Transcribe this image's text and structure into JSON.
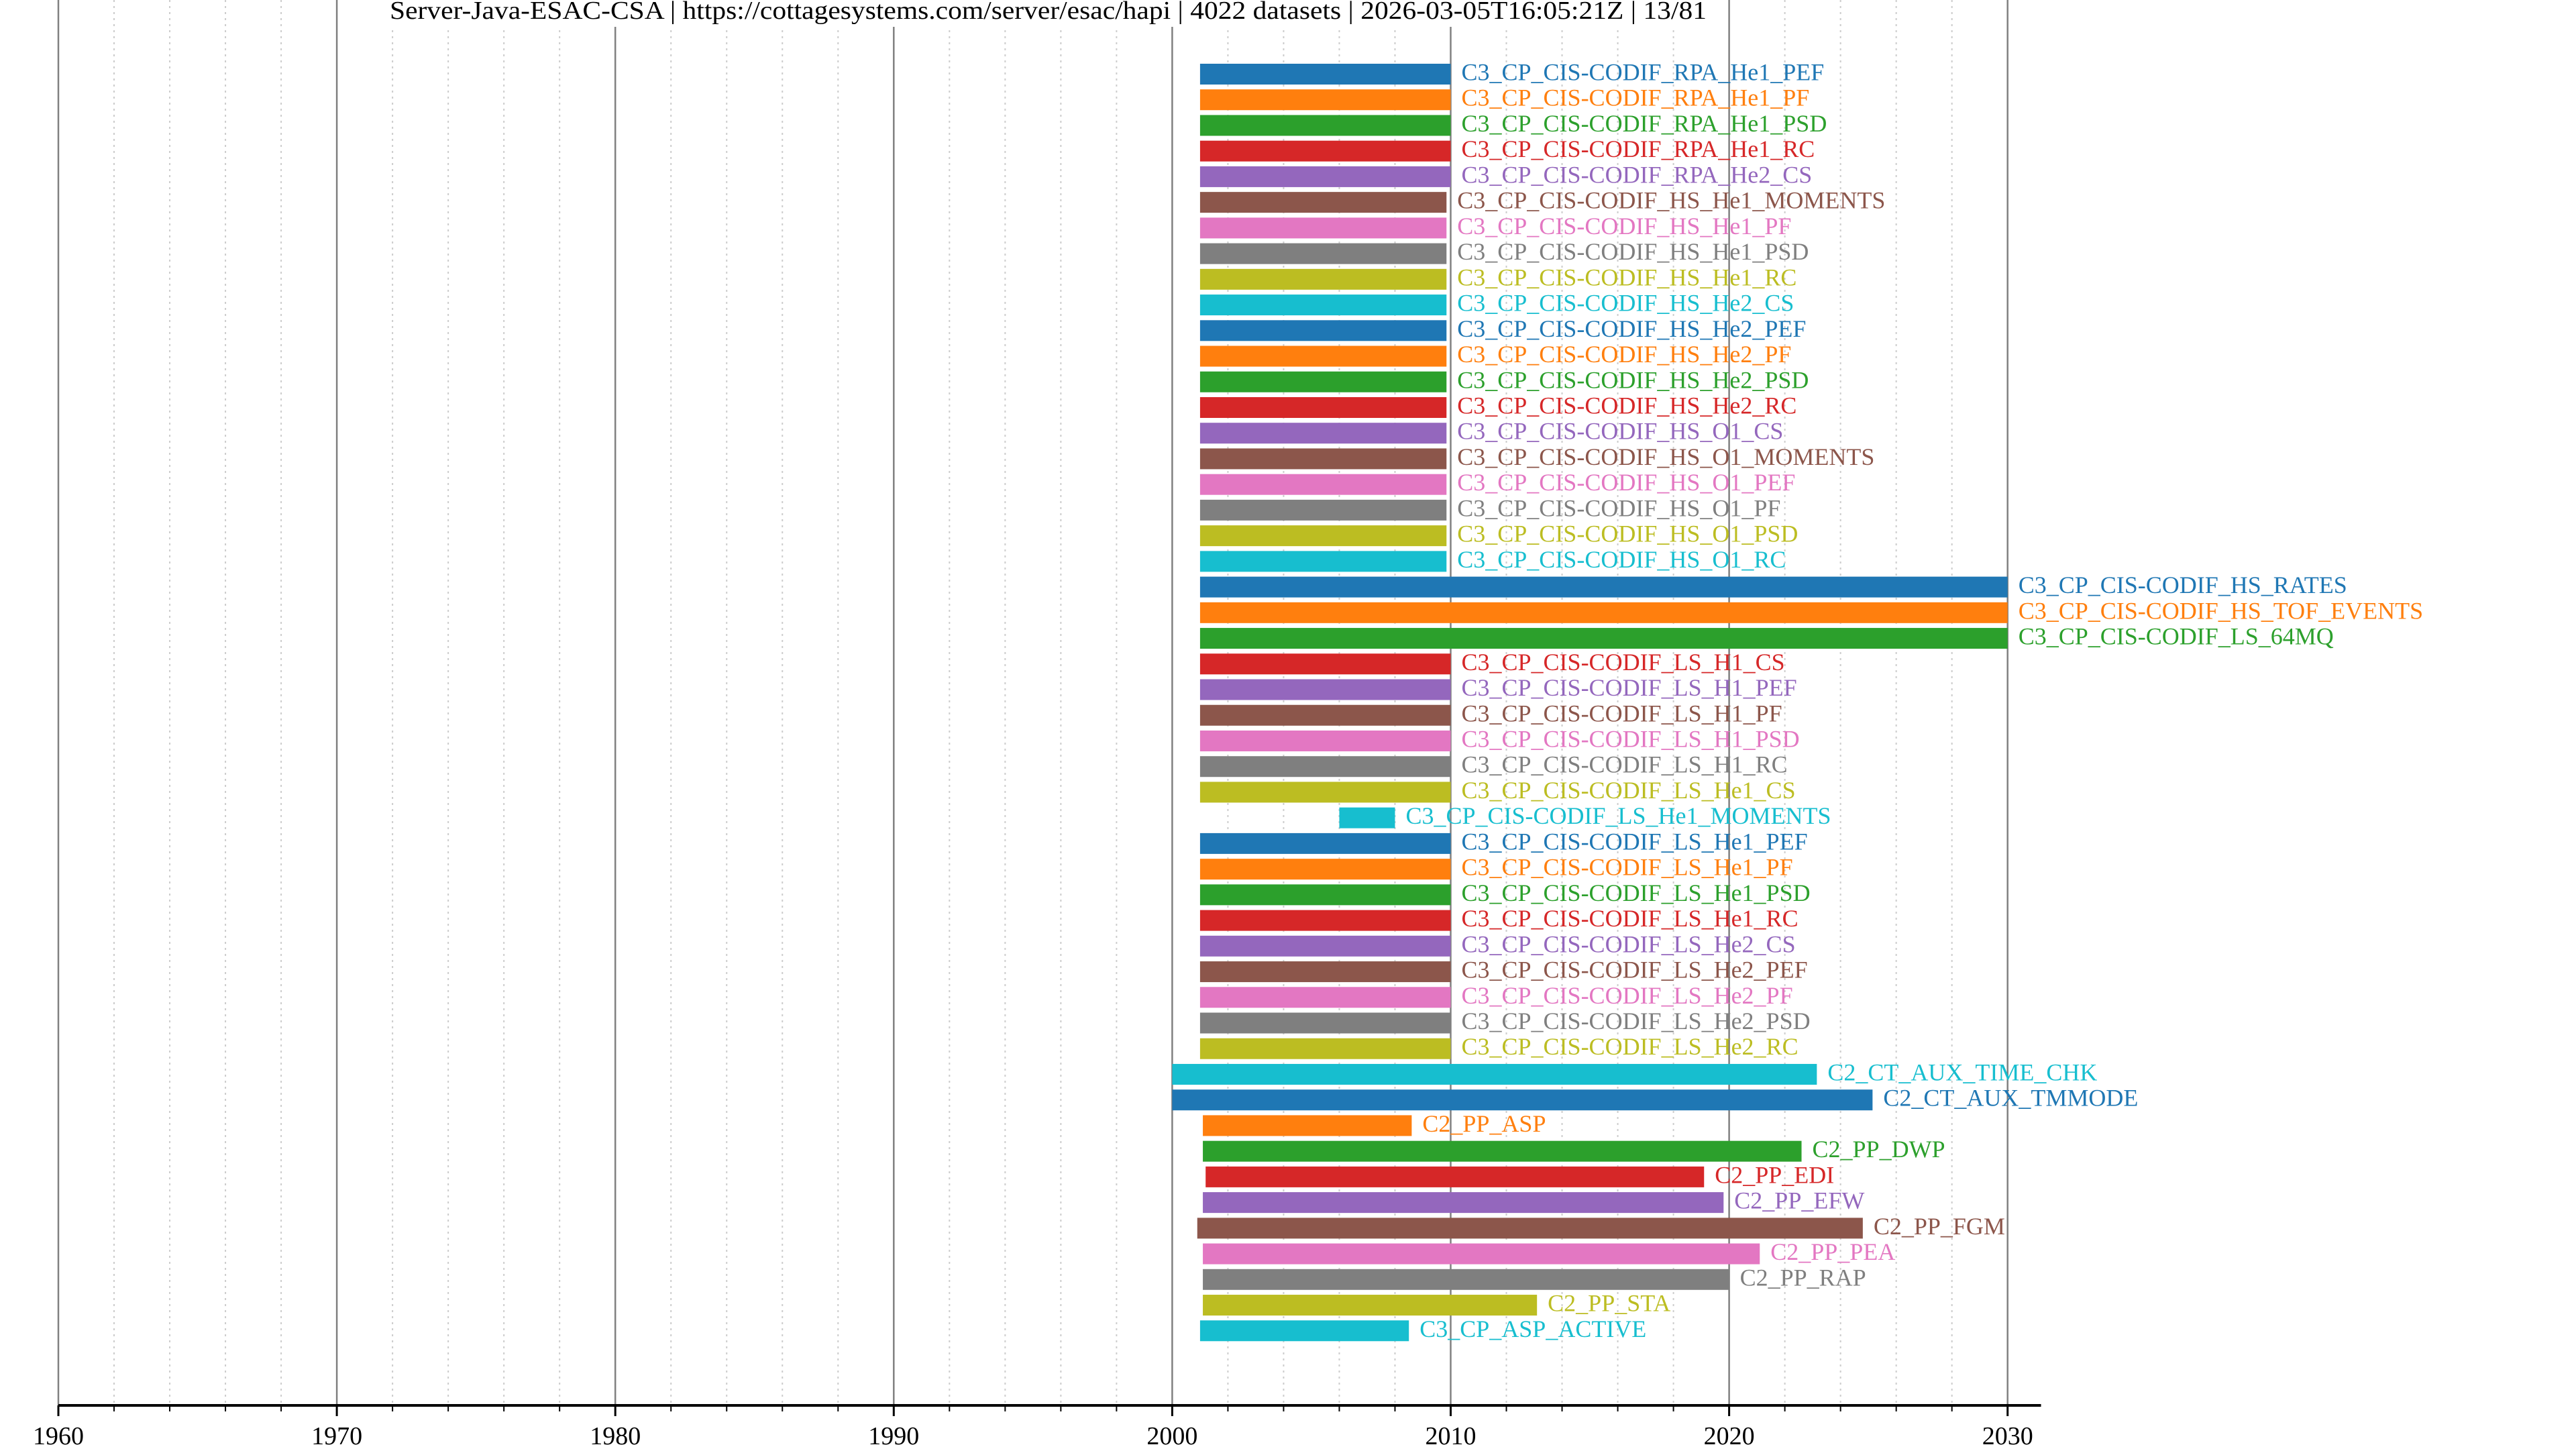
{
  "chart_data": {
    "type": "bar",
    "orientation": "horizontal-timeline",
    "title": "Server-Java-ESAC-CSA | https://cottagesystems.com/server/esac/hapi | 4022 datasets | 2026-03-05T16:05:21Z | 13/81",
    "xlabel": "",
    "ylabel": "",
    "xlim": [
      1960,
      2031.2
    ],
    "x_major_ticks": [
      1960,
      1970,
      1980,
      1990,
      2000,
      2010,
      2020,
      2030
    ],
    "x_tick_labels": [
      "1960",
      "1970",
      "1980",
      "1990",
      "2000",
      "2010",
      "2020",
      "2030"
    ],
    "x_minor_step": 2,
    "grid": true,
    "legend": "none",
    "colors": [
      "#1f77b4",
      "#ff7f0e",
      "#2ca02c",
      "#d62728",
      "#9467bd",
      "#8c564b",
      "#e377c2",
      "#7f7f7f",
      "#bcbd22",
      "#17becf"
    ],
    "series": [
      {
        "name": "C3_CP_CIS-CODIF_RPA_He1_PEF",
        "start": 2001.0,
        "end": 2010.0
      },
      {
        "name": "C3_CP_CIS-CODIF_RPA_He1_PF",
        "start": 2001.0,
        "end": 2010.0
      },
      {
        "name": "C3_CP_CIS-CODIF_RPA_He1_PSD",
        "start": 2001.0,
        "end": 2010.0
      },
      {
        "name": "C3_CP_CIS-CODIF_RPA_He1_RC",
        "start": 2001.0,
        "end": 2010.0
      },
      {
        "name": "C3_CP_CIS-CODIF_RPA_He2_CS",
        "start": 2001.0,
        "end": 2010.0
      },
      {
        "name": "C3_CP_CIS-CODIF_HS_He1_MOMENTS",
        "start": 2001.0,
        "end": 2009.85
      },
      {
        "name": "C3_CP_CIS-CODIF_HS_He1_PF",
        "start": 2001.0,
        "end": 2009.85
      },
      {
        "name": "C3_CP_CIS-CODIF_HS_He1_PSD",
        "start": 2001.0,
        "end": 2009.85
      },
      {
        "name": "C3_CP_CIS-CODIF_HS_He1_RC",
        "start": 2001.0,
        "end": 2009.85
      },
      {
        "name": "C3_CP_CIS-CODIF_HS_He2_CS",
        "start": 2001.0,
        "end": 2009.85
      },
      {
        "name": "C3_CP_CIS-CODIF_HS_He2_PEF",
        "start": 2001.0,
        "end": 2009.85
      },
      {
        "name": "C3_CP_CIS-CODIF_HS_He2_PF",
        "start": 2001.0,
        "end": 2009.85
      },
      {
        "name": "C3_CP_CIS-CODIF_HS_He2_PSD",
        "start": 2001.0,
        "end": 2009.85
      },
      {
        "name": "C3_CP_CIS-CODIF_HS_He2_RC",
        "start": 2001.0,
        "end": 2009.85
      },
      {
        "name": "C3_CP_CIS-CODIF_HS_O1_CS",
        "start": 2001.0,
        "end": 2009.85
      },
      {
        "name": "C3_CP_CIS-CODIF_HS_O1_MOMENTS",
        "start": 2001.0,
        "end": 2009.85
      },
      {
        "name": "C3_CP_CIS-CODIF_HS_O1_PEF",
        "start": 2001.0,
        "end": 2009.85
      },
      {
        "name": "C3_CP_CIS-CODIF_HS_O1_PF",
        "start": 2001.0,
        "end": 2009.85
      },
      {
        "name": "C3_CP_CIS-CODIF_HS_O1_PSD",
        "start": 2001.0,
        "end": 2009.85
      },
      {
        "name": "C3_CP_CIS-CODIF_HS_O1_RC",
        "start": 2001.0,
        "end": 2009.85
      },
      {
        "name": "C3_CP_CIS-CODIF_HS_RATES",
        "start": 2001.0,
        "end": 2030.0
      },
      {
        "name": "C3_CP_CIS-CODIF_HS_TOF_EVENTS",
        "start": 2001.0,
        "end": 2030.0
      },
      {
        "name": "C3_CP_CIS-CODIF_LS_64MQ",
        "start": 2001.0,
        "end": 2030.0
      },
      {
        "name": "C3_CP_CIS-CODIF_LS_H1_CS",
        "start": 2001.0,
        "end": 2010.0
      },
      {
        "name": "C3_CP_CIS-CODIF_LS_H1_PEF",
        "start": 2001.0,
        "end": 2010.0
      },
      {
        "name": "C3_CP_CIS-CODIF_LS_H1_PF",
        "start": 2001.0,
        "end": 2010.0
      },
      {
        "name": "C3_CP_CIS-CODIF_LS_H1_PSD",
        "start": 2001.0,
        "end": 2010.0
      },
      {
        "name": "C3_CP_CIS-CODIF_LS_H1_RC",
        "start": 2001.0,
        "end": 2010.0
      },
      {
        "name": "C3_CP_CIS-CODIF_LS_He1_CS",
        "start": 2001.0,
        "end": 2010.0
      },
      {
        "name": "C3_CP_CIS-CODIF_LS_He1_MOMENTS",
        "start": 2006.0,
        "end": 2008.0
      },
      {
        "name": "C3_CP_CIS-CODIF_LS_He1_PEF",
        "start": 2001.0,
        "end": 2010.0
      },
      {
        "name": "C3_CP_CIS-CODIF_LS_He1_PF",
        "start": 2001.0,
        "end": 2010.0
      },
      {
        "name": "C3_CP_CIS-CODIF_LS_He1_PSD",
        "start": 2001.0,
        "end": 2010.0
      },
      {
        "name": "C3_CP_CIS-CODIF_LS_He1_RC",
        "start": 2001.0,
        "end": 2010.0
      },
      {
        "name": "C3_CP_CIS-CODIF_LS_He2_CS",
        "start": 2001.0,
        "end": 2010.0
      },
      {
        "name": "C3_CP_CIS-CODIF_LS_He2_PEF",
        "start": 2001.0,
        "end": 2010.0
      },
      {
        "name": "C3_CP_CIS-CODIF_LS_He2_PF",
        "start": 2001.0,
        "end": 2010.0
      },
      {
        "name": "C3_CP_CIS-CODIF_LS_He2_PSD",
        "start": 2001.0,
        "end": 2010.0
      },
      {
        "name": "C3_CP_CIS-CODIF_LS_He2_RC",
        "start": 2001.0,
        "end": 2010.0
      },
      {
        "name": "C2_CT_AUX_TIME_CHK",
        "start": 2000.0,
        "end": 2023.15
      },
      {
        "name": "C2_CT_AUX_TMMODE",
        "start": 2000.0,
        "end": 2025.15
      },
      {
        "name": "C2_PP_ASP",
        "start": 2001.1,
        "end": 2008.6
      },
      {
        "name": "C2_PP_DWP",
        "start": 2001.1,
        "end": 2022.6
      },
      {
        "name": "C2_PP_EDI",
        "start": 2001.2,
        "end": 2019.1
      },
      {
        "name": "C2_PP_EFW",
        "start": 2001.1,
        "end": 2019.8
      },
      {
        "name": "C2_PP_FGM",
        "start": 2000.9,
        "end": 2024.8
      },
      {
        "name": "C2_PP_PEA",
        "start": 2001.1,
        "end": 2021.1
      },
      {
        "name": "C2_PP_RAP",
        "start": 2001.1,
        "end": 2020.0
      },
      {
        "name": "C2_PP_STA",
        "start": 2001.1,
        "end": 2013.1
      },
      {
        "name": "C3_CP_ASP_ACTIVE",
        "start": 2001.0,
        "end": 2008.5
      }
    ]
  }
}
